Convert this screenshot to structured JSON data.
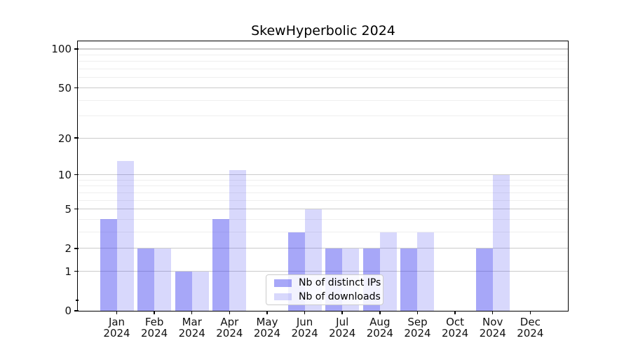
{
  "title": "SkewHyperbolic 2024",
  "chart_data": {
    "type": "bar",
    "title": "SkewHyperbolic 2024",
    "categories": [
      "Jan 2024",
      "Feb 2024",
      "Mar 2024",
      "Apr 2024",
      "May 2024",
      "Jun 2024",
      "Jul 2024",
      "Aug 2024",
      "Sep 2024",
      "Oct 2024",
      "Nov 2024",
      "Dec 2024"
    ],
    "year_line": "2024",
    "series": [
      {
        "name": "Nb of distinct IPs",
        "values": [
          4,
          2,
          1,
          4,
          0,
          3,
          2,
          2,
          2,
          0,
          2,
          0
        ],
        "color": "rgba(60,60,240,0.45)"
      },
      {
        "name": "Nb of downloads",
        "values": [
          13,
          2,
          1,
          11,
          0,
          5,
          2,
          3,
          3,
          0,
          10,
          0
        ],
        "color": "rgba(60,60,240,0.20)"
      }
    ],
    "xlabel": "",
    "ylabel": "",
    "yscale": "log1p",
    "ylim": [
      0,
      115
    ],
    "y_major_ticks": [
      100,
      50,
      20,
      10,
      5,
      2,
      1,
      0
    ],
    "y_minor_gridlines": [
      90,
      80,
      70,
      60,
      40,
      30,
      9,
      8,
      7,
      6,
      4,
      3
    ],
    "y_axis_minor_tick": 0.2,
    "grid": true,
    "legend_position": "lower center-left inside plot"
  },
  "colors": {
    "bar_dark_composited": "#a9a9f9",
    "bar_light_composited": "#d9d9fa",
    "major_grid": "#cbcbcb",
    "minor_grid": "#efefef",
    "spine": "#000000",
    "background": "#ffffff"
  }
}
